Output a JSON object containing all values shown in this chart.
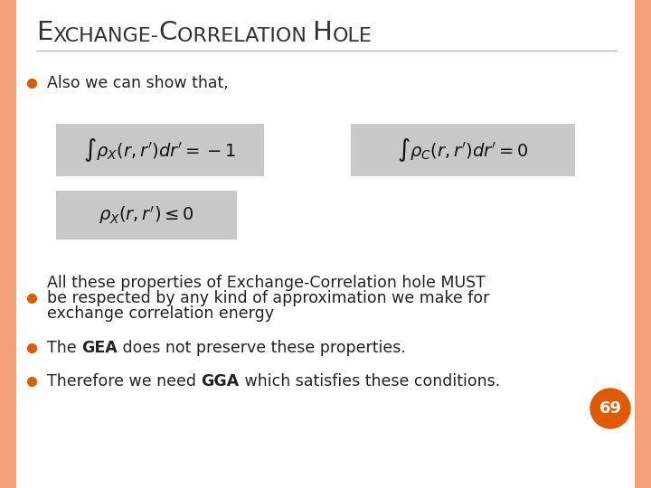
{
  "title_parts": [
    "E",
    "XCHANGE-",
    "C",
    "ORRELATION ",
    "H",
    "OLE"
  ],
  "title_large": [
    true,
    false,
    true,
    false,
    true,
    false
  ],
  "background_color": "#ffffff",
  "border_color": "#f4a07a",
  "bullet_color": "#e05a00",
  "bullet_text_1": "Also we can show that,",
  "formula_bg": "#c8c8c8",
  "formula1": "$\\int \\rho_X(r,r')dr' = -1$",
  "formula2": "$\\int \\rho_C(r,r')dr' = 0$",
  "formula3": "$\\rho_X(r,r') \\leq 0$",
  "bullet_text_2a": "All these properties of Exchange-Correlation hole MUST",
  "bullet_text_2b": "be respected by any kind of approximation we make for",
  "bullet_text_2c": "exchange correlation energy",
  "bullet_text_3_normal1": "The ",
  "bullet_text_3_bold": "GEA",
  "bullet_text_3_normal2": " does not preserve these properties.",
  "bullet_text_4_normal1": "Therefore we need ",
  "bullet_text_4_bold": "GGA",
  "bullet_text_4_normal2": " which satisfies these conditions.",
  "page_number": "69",
  "page_circle_color": "#e05a00",
  "page_number_color": "#ffffff",
  "title_color": "#333333",
  "text_color": "#222222",
  "title_large_size": 21,
  "title_small_size": 16,
  "body_fontsize": 12.5,
  "formula_fontsize": 14
}
